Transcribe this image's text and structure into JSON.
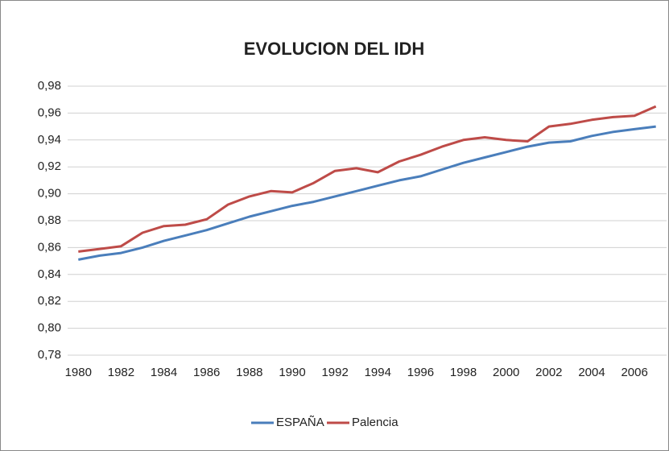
{
  "chart_data": {
    "type": "line",
    "title": "EVOLUCION DEL IDH",
    "categories": [
      "1980",
      null,
      "1982",
      null,
      "1984",
      null,
      "1986",
      null,
      "1988",
      null,
      "1990",
      null,
      "1992",
      null,
      "1994",
      null,
      "1996",
      null,
      "1998",
      null,
      "2000",
      null,
      "2002",
      null,
      "2004",
      null,
      "2006",
      null
    ],
    "series": [
      {
        "name": "ESPAÑA",
        "color": "#4a7ebb",
        "values": [
          0.851,
          0.854,
          0.856,
          0.86,
          0.865,
          0.869,
          0.873,
          0.878,
          0.883,
          0.887,
          0.891,
          0.894,
          0.898,
          0.902,
          0.906,
          0.91,
          0.913,
          0.918,
          0.923,
          0.927,
          0.931,
          0.935,
          0.938,
          0.939,
          0.943,
          0.946,
          0.948,
          0.95
        ]
      },
      {
        "name": "Palencia",
        "color": "#be4b48",
        "values": [
          0.857,
          0.859,
          0.861,
          0.871,
          0.876,
          0.877,
          0.881,
          0.892,
          0.898,
          0.902,
          0.901,
          0.908,
          0.917,
          0.919,
          0.916,
          0.924,
          0.929,
          0.935,
          0.94,
          0.942,
          0.94,
          0.939,
          0.95,
          0.952,
          0.955,
          0.957,
          0.958,
          0.965
        ]
      }
    ],
    "ylim": [
      0.78,
      0.98
    ],
    "yticks": [
      {
        "value": 0.78,
        "label": "0,78"
      },
      {
        "value": 0.8,
        "label": "0,80"
      },
      {
        "value": 0.82,
        "label": "0,82"
      },
      {
        "value": 0.84,
        "label": "0,84"
      },
      {
        "value": 0.86,
        "label": "0,86"
      },
      {
        "value": 0.88,
        "label": "0,88"
      },
      {
        "value": 0.9,
        "label": "0,90"
      },
      {
        "value": 0.92,
        "label": "0,92"
      },
      {
        "value": 0.94,
        "label": "0,94"
      },
      {
        "value": 0.96,
        "label": "0,96"
      },
      {
        "value": 0.98,
        "label": "0,98"
      }
    ],
    "grid": true,
    "legend": "bottom"
  }
}
